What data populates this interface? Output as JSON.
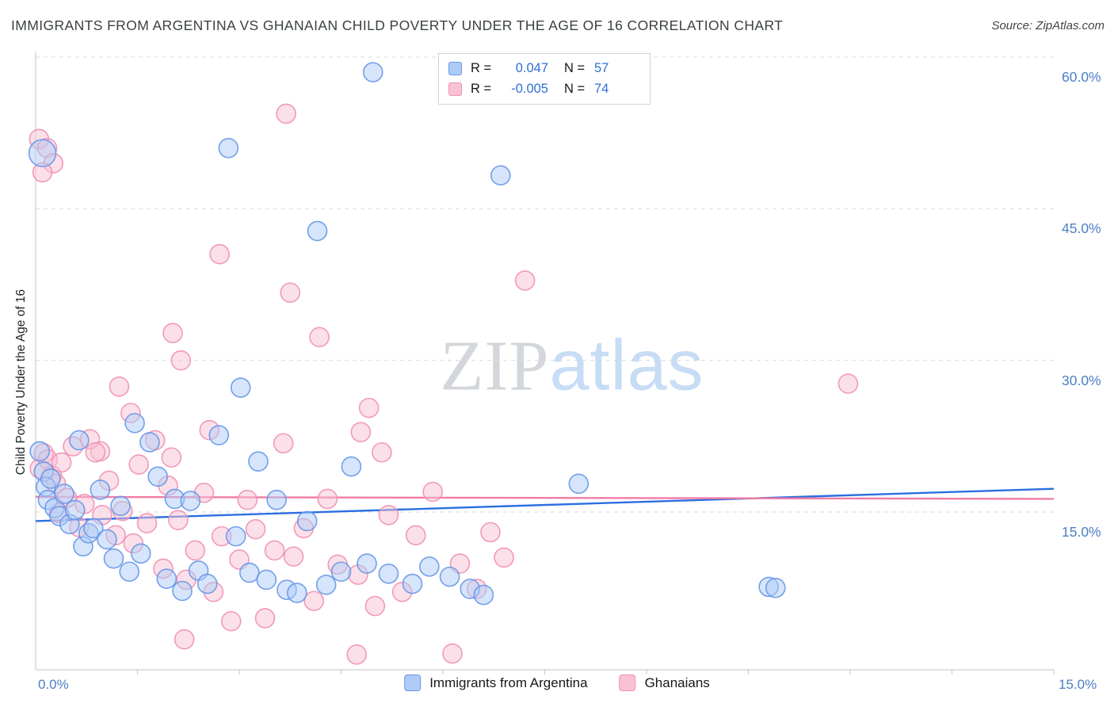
{
  "header": {
    "title": "IMMIGRANTS FROM ARGENTINA VS GHANAIAN CHILD POVERTY UNDER THE AGE OF 16 CORRELATION CHART",
    "source": "Source: ZipAtlas.com"
  },
  "axes": {
    "y_label": "Child Poverty Under the Age of 16",
    "y_ticks": [
      {
        "value": 60,
        "label": "60.0%"
      },
      {
        "value": 45,
        "label": "45.0%"
      },
      {
        "value": 30,
        "label": "30.0%"
      },
      {
        "value": 15,
        "label": "15.0%"
      }
    ],
    "x_min_label": "0.0%",
    "x_max_label": "15.0%",
    "x_ticks_minor": [
      1.5,
      3.0,
      4.5,
      6.0,
      7.5,
      9.0,
      10.5,
      12.0,
      13.5,
      15.0
    ]
  },
  "legend_box": {
    "rows": [
      {
        "r_label": "R =",
        "r_value": "0.047",
        "n_label": "N =",
        "n_value": "57"
      },
      {
        "r_label": "R =",
        "r_value": "-0.005",
        "n_label": "N =",
        "n_value": "74"
      }
    ]
  },
  "series_legend": {
    "items": [
      {
        "label": "Immigrants from Argentina"
      },
      {
        "label": "Ghanaians"
      }
    ]
  },
  "watermark": {
    "part1": "ZIP",
    "part2": "atlas"
  },
  "colors": {
    "tick_text": "#4a80c4",
    "accent_value_text": "#2e6fd6",
    "gridline": "#d9d9d9",
    "axis": "#c3c6c9"
  },
  "chart_data": {
    "type": "scatter",
    "title": "Immigrants from Argentina vs Ghanaian Child Poverty under the Age of 16",
    "xlabel": "Immigrants from Argentina (%)",
    "ylabel": "Child Poverty Under the Age of 16 (%)",
    "xlim": [
      0,
      15
    ],
    "ylim": [
      0,
      62
    ],
    "grid": "horizontal-dashed",
    "legend_position": "top-center",
    "series": [
      {
        "name": "Immigrants from Argentina",
        "R": 0.047,
        "N": 57,
        "fill": "#aecbf8",
        "stroke": "#6596e8",
        "points": [
          [
            0.06,
            21.0
          ],
          [
            0.1,
            50.5,
            17
          ],
          [
            0.12,
            19.0
          ],
          [
            0.15,
            17.5
          ],
          [
            0.18,
            16.2
          ],
          [
            0.22,
            18.3
          ],
          [
            0.28,
            15.4
          ],
          [
            0.35,
            14.6
          ],
          [
            0.42,
            16.8
          ],
          [
            0.5,
            13.8
          ],
          [
            0.58,
            15.2
          ],
          [
            0.64,
            22.1
          ],
          [
            0.7,
            11.6
          ],
          [
            0.78,
            12.9
          ],
          [
            0.85,
            13.4
          ],
          [
            0.95,
            17.2
          ],
          [
            1.05,
            12.3
          ],
          [
            1.15,
            10.4
          ],
          [
            1.25,
            15.6
          ],
          [
            1.38,
            9.1
          ],
          [
            1.46,
            23.8
          ],
          [
            1.55,
            10.9
          ],
          [
            1.68,
            21.9
          ],
          [
            1.8,
            18.5
          ],
          [
            1.93,
            8.4
          ],
          [
            2.05,
            16.3
          ],
          [
            2.16,
            7.2
          ],
          [
            2.28,
            16.1
          ],
          [
            2.4,
            9.2
          ],
          [
            2.53,
            7.9
          ],
          [
            2.7,
            22.6
          ],
          [
            2.84,
            51.0
          ],
          [
            2.95,
            12.6
          ],
          [
            3.02,
            27.3
          ],
          [
            3.15,
            9.0
          ],
          [
            3.28,
            20.0
          ],
          [
            3.4,
            8.3
          ],
          [
            3.55,
            16.2
          ],
          [
            3.7,
            7.3
          ],
          [
            3.85,
            7.0
          ],
          [
            4.0,
            14.1
          ],
          [
            4.15,
            42.8
          ],
          [
            4.28,
            7.8
          ],
          [
            4.5,
            9.1
          ],
          [
            4.65,
            19.5
          ],
          [
            4.88,
            9.9
          ],
          [
            4.97,
            58.5
          ],
          [
            5.2,
            8.9
          ],
          [
            5.55,
            7.9
          ],
          [
            5.8,
            9.6
          ],
          [
            6.1,
            8.6
          ],
          [
            6.4,
            7.4
          ],
          [
            6.6,
            6.8
          ],
          [
            6.85,
            48.3
          ],
          [
            8.0,
            17.8
          ],
          [
            10.8,
            7.6
          ],
          [
            10.9,
            7.5
          ]
        ]
      },
      {
        "name": "Ghanaians",
        "R": -0.005,
        "N": 74,
        "fill": "#f9c2d4",
        "stroke": "#f090b2",
        "points": [
          [
            3.69,
            54.4
          ],
          [
            2.71,
            40.5
          ],
          [
            7.21,
            37.9
          ],
          [
            3.75,
            36.7
          ],
          [
            4.18,
            32.3
          ],
          [
            2.02,
            32.7
          ],
          [
            2.14,
            30.0
          ],
          [
            1.23,
            27.4
          ],
          [
            11.97,
            27.7
          ],
          [
            4.91,
            25.3
          ],
          [
            1.4,
            24.8
          ],
          [
            2.56,
            23.1
          ],
          [
            4.79,
            22.9
          ],
          [
            0.95,
            21.0
          ],
          [
            0.05,
            51.9
          ],
          [
            0.17,
            51.0
          ],
          [
            0.26,
            49.5
          ],
          [
            0.1,
            48.6
          ],
          [
            0.06,
            19.3
          ],
          [
            0.12,
            20.8
          ],
          [
            0.18,
            20.2
          ],
          [
            0.24,
            18.6
          ],
          [
            0.3,
            17.8
          ],
          [
            0.38,
            19.9
          ],
          [
            0.46,
            16.4
          ],
          [
            0.55,
            21.5
          ],
          [
            0.64,
            13.5
          ],
          [
            0.72,
            15.8
          ],
          [
            0.8,
            22.2
          ],
          [
            0.88,
            20.9
          ],
          [
            0.98,
            14.7
          ],
          [
            1.08,
            18.1
          ],
          [
            1.18,
            12.7
          ],
          [
            1.28,
            15.1
          ],
          [
            1.44,
            11.9
          ],
          [
            1.52,
            19.7
          ],
          [
            1.64,
            13.9
          ],
          [
            1.76,
            22.1
          ],
          [
            1.88,
            9.4
          ],
          [
            2.0,
            20.4
          ],
          [
            2.1,
            14.2
          ],
          [
            2.22,
            8.3
          ],
          [
            2.35,
            11.2
          ],
          [
            2.48,
            16.9
          ],
          [
            2.19,
            2.4
          ],
          [
            2.62,
            7.1
          ],
          [
            2.74,
            12.6
          ],
          [
            2.88,
            4.2
          ],
          [
            3.0,
            10.3
          ],
          [
            3.12,
            16.2
          ],
          [
            3.24,
            13.3
          ],
          [
            3.38,
            4.5
          ],
          [
            3.52,
            11.2
          ],
          [
            3.65,
            21.8
          ],
          [
            3.8,
            10.6
          ],
          [
            3.95,
            13.4
          ],
          [
            4.1,
            6.2
          ],
          [
            4.3,
            16.3
          ],
          [
            4.45,
            9.8
          ],
          [
            4.73,
            0.9
          ],
          [
            4.75,
            8.8
          ],
          [
            5.0,
            5.7
          ],
          [
            5.1,
            20.9
          ],
          [
            5.2,
            14.7
          ],
          [
            5.4,
            7.1
          ],
          [
            5.6,
            12.7
          ],
          [
            5.85,
            17.0
          ],
          [
            6.14,
            1.0
          ],
          [
            6.25,
            9.9
          ],
          [
            6.5,
            7.4
          ],
          [
            6.7,
            13.0
          ],
          [
            6.9,
            10.5
          ],
          [
            0.34,
            14.9
          ],
          [
            1.95,
            17.6
          ]
        ]
      }
    ],
    "trendlines": [
      {
        "series": "Immigrants from Argentina",
        "color": "#2b6fe0",
        "start": [
          0,
          14.1
        ],
        "end": [
          15,
          17.3
        ]
      },
      {
        "series": "Ghanaians",
        "color": "#f27ba5",
        "start": [
          0,
          16.5
        ],
        "end": [
          15,
          16.3
        ]
      }
    ]
  }
}
